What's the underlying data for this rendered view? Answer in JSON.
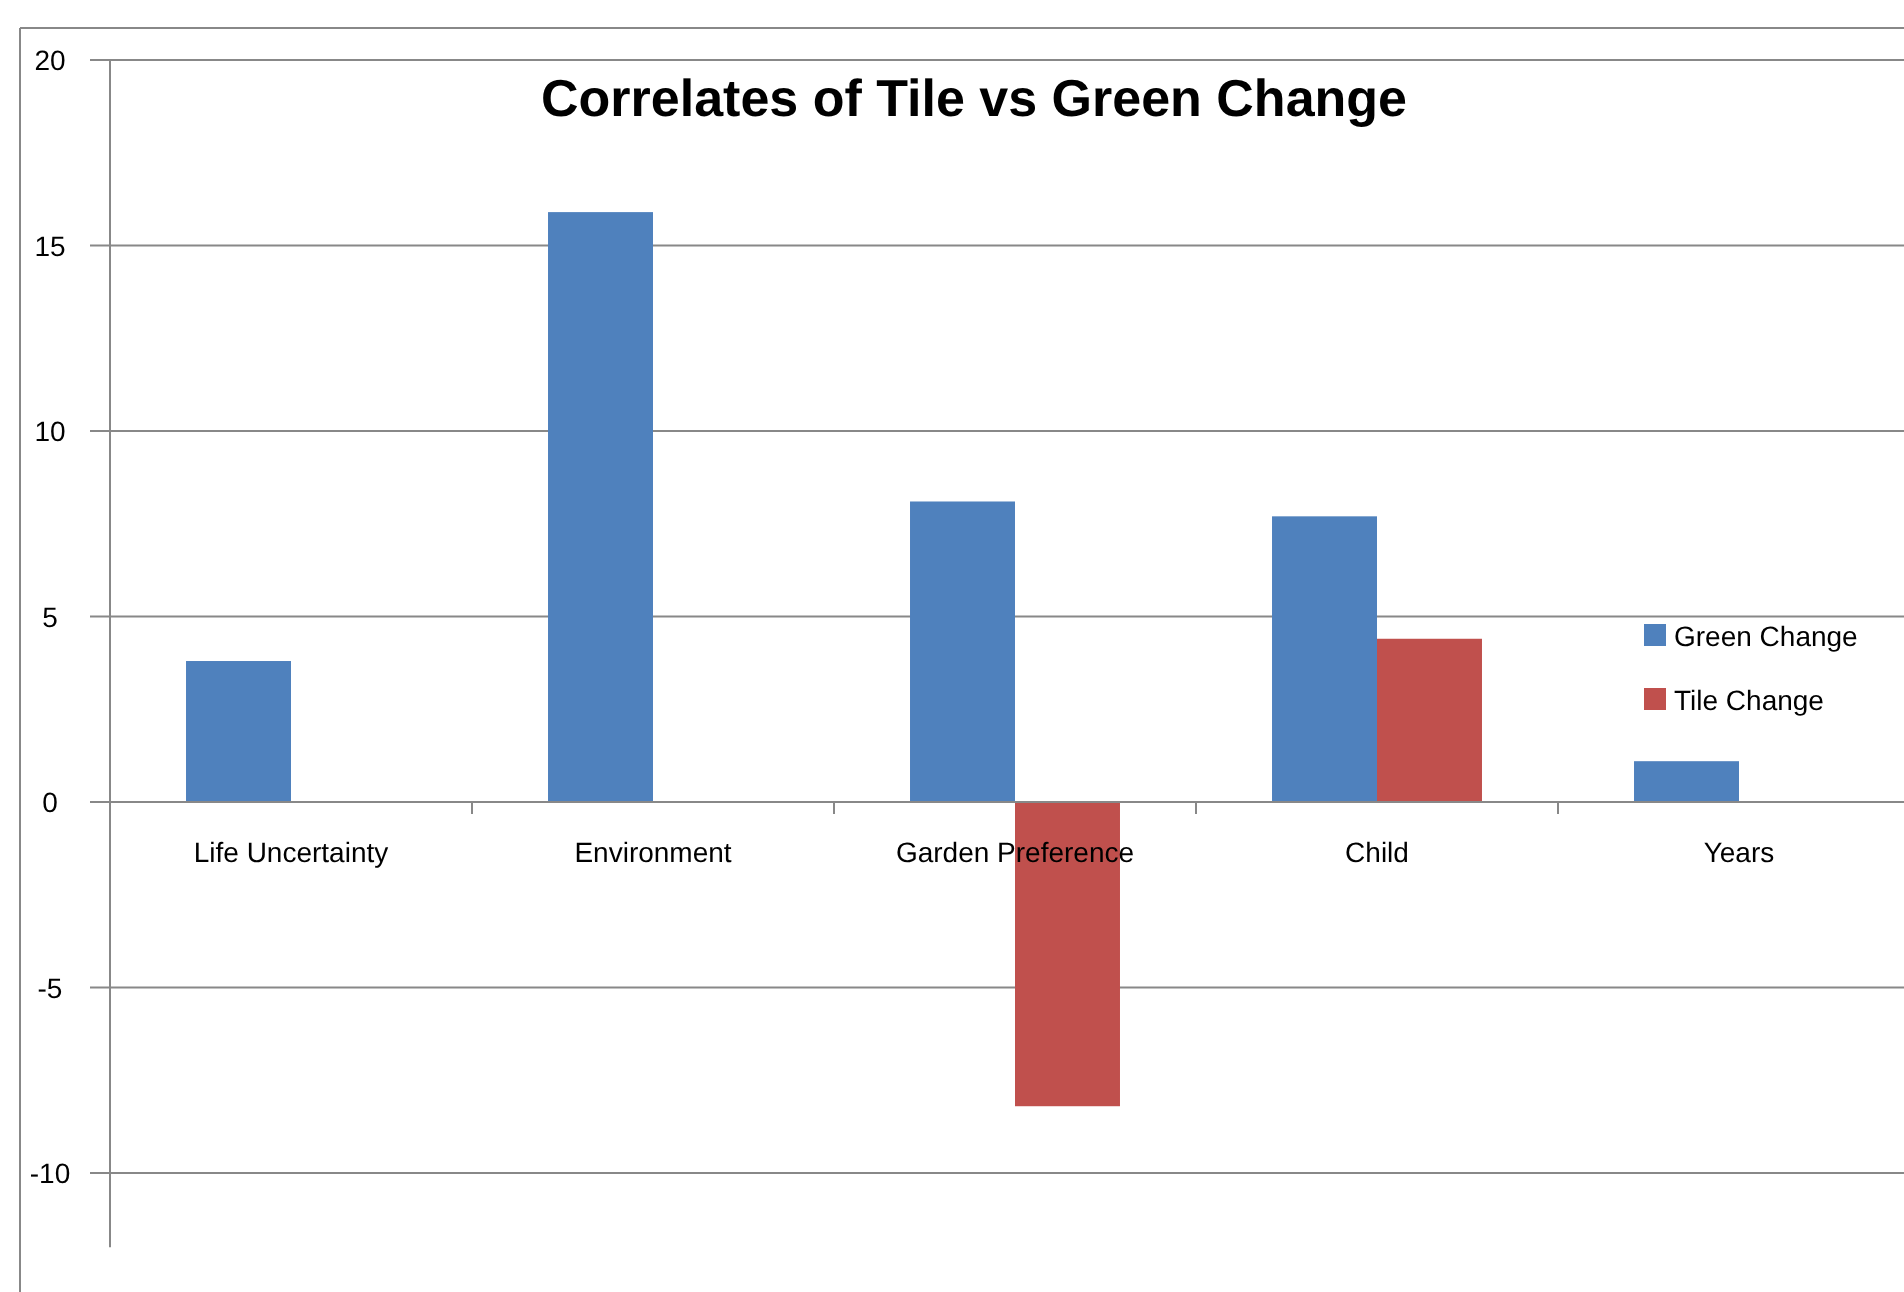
{
  "chart_data": {
    "type": "bar",
    "title": "Correlates of Tile vs Green Change",
    "categories": [
      "Life Uncertainty",
      "Environment",
      "Garden Preference",
      "Child",
      "Years"
    ],
    "series": [
      {
        "name": "Green Change",
        "color": "#4f81bd",
        "values": [
          3.8,
          15.9,
          8.1,
          7.7,
          1.1
        ]
      },
      {
        "name": "Tile Change",
        "color": "#c0504d",
        "values": [
          null,
          null,
          -8.2,
          4.4,
          null
        ]
      }
    ],
    "ylim": [
      -12,
      20
    ],
    "yticks": [
      -10,
      -5,
      0,
      5,
      10,
      15,
      20
    ],
    "grid": "y",
    "legend": "right"
  }
}
